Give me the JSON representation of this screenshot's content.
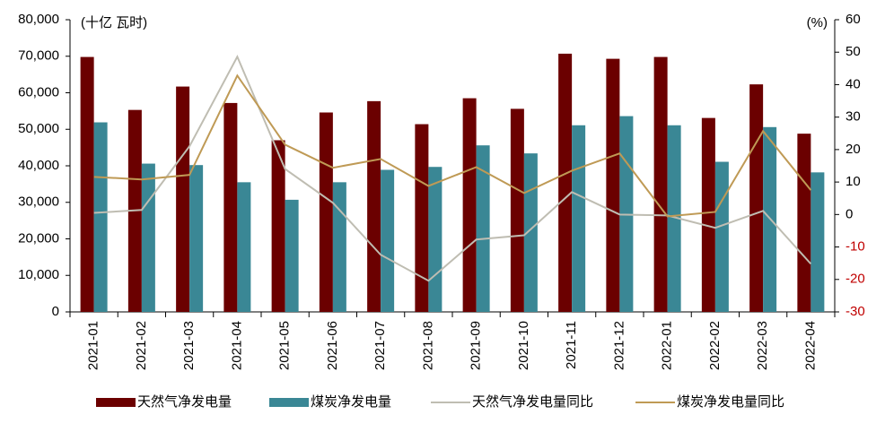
{
  "chart_data": {
    "type": "bar",
    "y_unit": "(十亿 瓦时)",
    "y2_unit": "(%)",
    "categories": [
      "2021-01",
      "2021-02",
      "2021-03",
      "2021-04",
      "2021-05",
      "2021-06",
      "2021-07",
      "2021-08",
      "2021-09",
      "2021-10",
      "2021-11",
      "2021-12",
      "2022-01",
      "2022-02",
      "2022-03",
      "2022-04"
    ],
    "series": [
      {
        "name": "天然气净发电量",
        "type": "bar",
        "color": "#6b0000",
        "values": [
          69800,
          55300,
          61700,
          57200,
          47000,
          54600,
          57700,
          51400,
          58500,
          55600,
          70700,
          69300,
          69800,
          53100,
          62300,
          48800
        ]
      },
      {
        "name": "煤炭净发电量",
        "type": "bar",
        "color": "#3a8795",
        "values": [
          51900,
          40600,
          40200,
          35500,
          30700,
          35500,
          38900,
          39700,
          45600,
          43400,
          51100,
          53600,
          51100,
          41100,
          50600,
          38200
        ]
      },
      {
        "name": "天然气净发电量同比",
        "type": "line",
        "axis": "y2",
        "color": "#bfbdb2",
        "values": [
          0.5,
          1.4,
          21,
          48.6,
          14,
          3.6,
          -12.4,
          -20.4,
          -7.7,
          -6.4,
          6.9,
          0,
          -0.3,
          -4.1,
          1.1,
          -15.2
        ]
      },
      {
        "name": "煤炭净发电量同比",
        "type": "line",
        "axis": "y2",
        "color": "#bf9a55",
        "values": [
          11.6,
          10.8,
          12.2,
          42.8,
          21.5,
          14.4,
          17.1,
          8.8,
          14.6,
          6.6,
          13.5,
          18.8,
          -0.6,
          0.8,
          25.7,
          7.5
        ]
      }
    ],
    "ylim": [
      0,
      80000
    ],
    "yticks": [
      0,
      {
        "value": 10000,
        "label": "10,000"
      },
      {
        "value": 20000,
        "label": "20,000"
      },
      {
        "value": 30000,
        "label": "30,000"
      },
      {
        "value": 40000,
        "label": "40,000"
      },
      {
        "value": 50000,
        "label": "50,000"
      },
      {
        "value": 60000,
        "label": "60,000"
      },
      {
        "value": 70000,
        "label": "70,000"
      },
      {
        "value": 80000,
        "label": "80,000"
      }
    ],
    "y2lim": [
      -30,
      60
    ],
    "y2ticks": [
      -30,
      -20,
      -10,
      0,
      10,
      20,
      30,
      40,
      50,
      60
    ],
    "y2_negative_color": "#c00000",
    "grid": false,
    "legend": "bottom"
  }
}
